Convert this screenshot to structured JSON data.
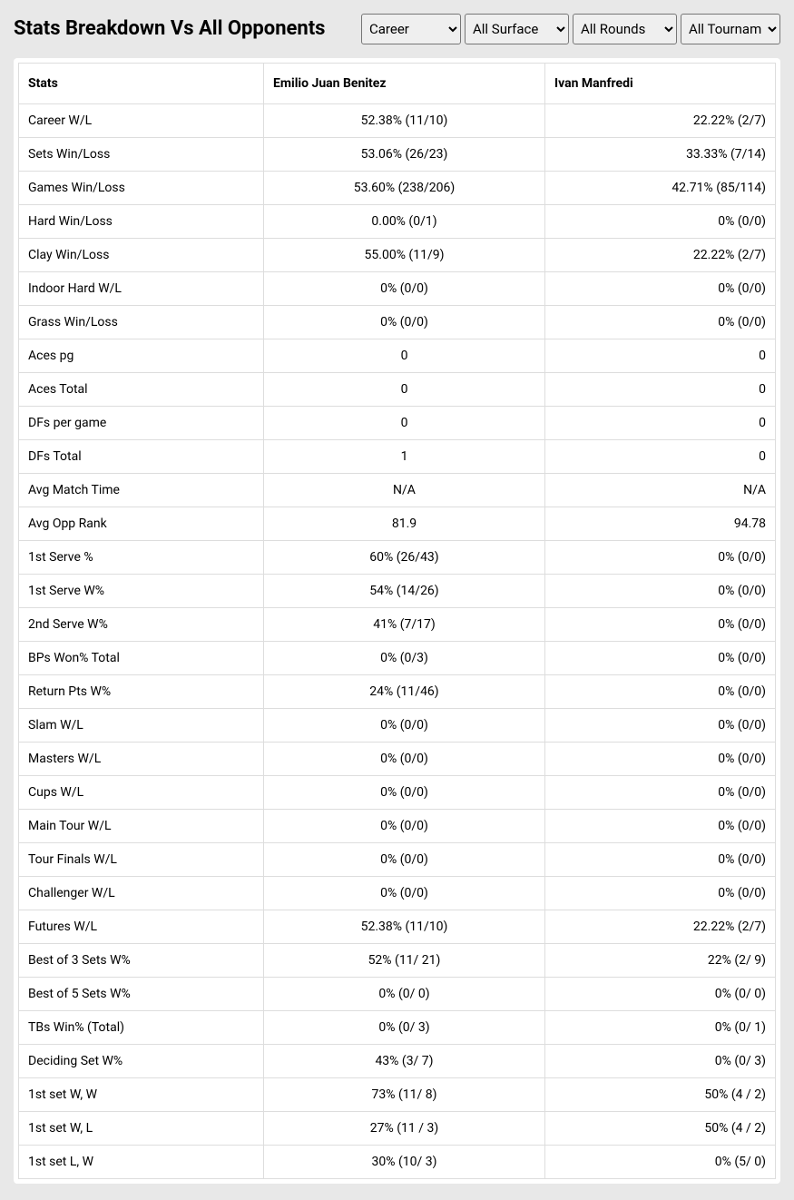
{
  "header": {
    "title": "Stats Breakdown Vs All Opponents"
  },
  "filters": {
    "period": {
      "selected": "Career",
      "options": [
        "Career"
      ]
    },
    "surface": {
      "selected": "All Surface",
      "options": [
        "All Surface"
      ]
    },
    "round": {
      "selected": "All Rounds",
      "options": [
        "All Rounds"
      ]
    },
    "tournament": {
      "selected": "All Tournaments",
      "options": [
        "All Tournaments"
      ]
    }
  },
  "table": {
    "columns": {
      "stats": "Stats",
      "player1": "Emilio Juan Benitez",
      "player2": "Ivan Manfredi"
    },
    "rows": [
      {
        "stat": "Career W/L",
        "p1": "52.38% (11/10)",
        "p2": "22.22% (2/7)"
      },
      {
        "stat": "Sets Win/Loss",
        "p1": "53.06% (26/23)",
        "p2": "33.33% (7/14)"
      },
      {
        "stat": "Games Win/Loss",
        "p1": "53.60% (238/206)",
        "p2": "42.71% (85/114)"
      },
      {
        "stat": "Hard Win/Loss",
        "p1": "0.00% (0/1)",
        "p2": "0% (0/0)"
      },
      {
        "stat": "Clay Win/Loss",
        "p1": "55.00% (11/9)",
        "p2": "22.22% (2/7)"
      },
      {
        "stat": "Indoor Hard W/L",
        "p1": "0% (0/0)",
        "p2": "0% (0/0)"
      },
      {
        "stat": "Grass Win/Loss",
        "p1": "0% (0/0)",
        "p2": "0% (0/0)"
      },
      {
        "stat": "Aces pg",
        "p1": "0",
        "p2": "0"
      },
      {
        "stat": "Aces Total",
        "p1": "0",
        "p2": "0"
      },
      {
        "stat": "DFs per game",
        "p1": "0",
        "p2": "0"
      },
      {
        "stat": "DFs Total",
        "p1": "1",
        "p2": "0"
      },
      {
        "stat": "Avg Match Time",
        "p1": "N/A",
        "p2": "N/A"
      },
      {
        "stat": "Avg Opp Rank",
        "p1": "81.9",
        "p2": "94.78"
      },
      {
        "stat": "1st Serve %",
        "p1": "60% (26/43)",
        "p2": "0% (0/0)"
      },
      {
        "stat": "1st Serve W%",
        "p1": "54% (14/26)",
        "p2": "0% (0/0)"
      },
      {
        "stat": "2nd Serve W%",
        "p1": "41% (7/17)",
        "p2": "0% (0/0)"
      },
      {
        "stat": "BPs Won% Total",
        "p1": "0% (0/3)",
        "p2": "0% (0/0)"
      },
      {
        "stat": "Return Pts W%",
        "p1": "24% (11/46)",
        "p2": "0% (0/0)"
      },
      {
        "stat": "Slam W/L",
        "p1": "0% (0/0)",
        "p2": "0% (0/0)"
      },
      {
        "stat": "Masters W/L",
        "p1": "0% (0/0)",
        "p2": "0% (0/0)"
      },
      {
        "stat": "Cups W/L",
        "p1": "0% (0/0)",
        "p2": "0% (0/0)"
      },
      {
        "stat": "Main Tour W/L",
        "p1": "0% (0/0)",
        "p2": "0% (0/0)"
      },
      {
        "stat": "Tour Finals W/L",
        "p1": "0% (0/0)",
        "p2": "0% (0/0)"
      },
      {
        "stat": "Challenger W/L",
        "p1": "0% (0/0)",
        "p2": "0% (0/0)"
      },
      {
        "stat": "Futures W/L",
        "p1": "52.38% (11/10)",
        "p2": "22.22% (2/7)"
      },
      {
        "stat": "Best of 3 Sets W%",
        "p1": "52% (11/ 21)",
        "p2": "22% (2/ 9)"
      },
      {
        "stat": "Best of 5 Sets W%",
        "p1": "0% (0/ 0)",
        "p2": "0% (0/ 0)"
      },
      {
        "stat": "TBs Win% (Total)",
        "p1": "0% (0/ 3)",
        "p2": "0% (0/ 1)"
      },
      {
        "stat": "Deciding Set W%",
        "p1": "43% (3/ 7)",
        "p2": "0% (0/ 3)"
      },
      {
        "stat": "1st set W, W",
        "p1": "73% (11/ 8)",
        "p2": "50% (4 / 2)"
      },
      {
        "stat": "1st set W, L",
        "p1": "27% (11 / 3)",
        "p2": "50% (4 / 2)"
      },
      {
        "stat": "1st set L, W",
        "p1": "30% (10/ 3)",
        "p2": "0% (5/ 0)"
      }
    ]
  },
  "styling": {
    "background_color": "#e8e8e8",
    "table_background": "#ffffff",
    "border_color": "#dddddd",
    "text_color": "#000000",
    "title_fontsize": 22,
    "body_fontsize": 14
  }
}
